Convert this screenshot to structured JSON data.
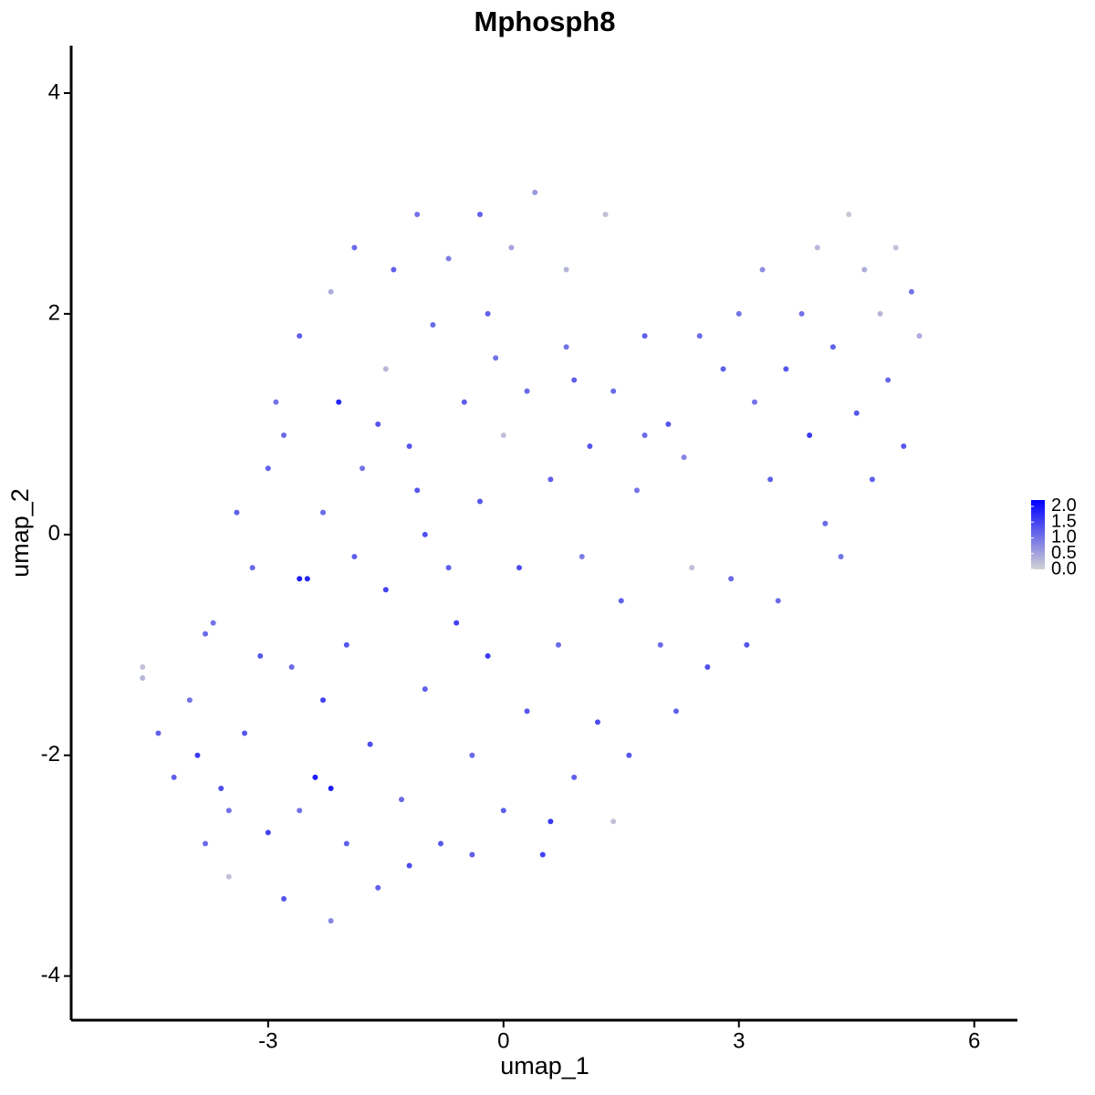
{
  "chart_data": {
    "type": "scatter",
    "title": "Mphosph8",
    "x_label": "umap_1",
    "y_label": "umap_2",
    "xlim": [
      -5.51,
      6.55
    ],
    "ylim": [
      -4.4,
      4.43
    ],
    "xticks": [
      -3,
      0,
      3,
      6
    ],
    "yticks": [
      -4,
      -2,
      0,
      2,
      4
    ],
    "low_color": "#d3d3d3",
    "high_color": "#0000ff",
    "colorbar_lim": [
      0,
      2.2
    ],
    "colorbar_ticks": [
      {
        "value": 0,
        "label": "0.0"
      },
      {
        "value": 0.5,
        "label": "0.5"
      },
      {
        "value": 1,
        "label": "1.0"
      },
      {
        "value": 1.5,
        "label": "1.5"
      },
      {
        "value": 2,
        "label": "2.0"
      }
    ],
    "x": [
      -4.6,
      -4.2,
      -4.0,
      -3.8,
      -3.6,
      -3.5,
      -3.3,
      -3.2,
      -3.0,
      -3.0,
      -2.9,
      -2.8,
      -2.7,
      -2.6,
      -2.5,
      -2.4,
      -2.3,
      -2.2,
      -2.2,
      -2.1,
      -2.0,
      -2.0,
      -1.9,
      -1.8,
      -1.7,
      -1.6,
      -1.5,
      -1.5,
      -1.4,
      -1.3,
      -1.2,
      -1.1,
      -1.0,
      -1.0,
      -0.9,
      -0.8,
      -0.7,
      -0.6,
      -0.5,
      -0.4,
      -0.3,
      -0.3,
      -0.2,
      -0.1,
      0.0,
      0.0,
      0.1,
      0.2,
      0.3,
      0.3,
      0.4,
      0.5,
      0.6,
      0.7,
      0.8,
      0.8,
      0.9,
      1.0,
      1.1,
      1.2,
      1.3,
      1.4,
      1.5,
      1.6,
      1.7,
      1.8,
      2.0,
      2.1,
      2.2,
      2.3,
      2.5,
      2.6,
      2.8,
      2.9,
      3.0,
      3.1,
      3.3,
      3.4,
      3.5,
      3.6,
      3.8,
      3.9,
      4.0,
      4.1,
      4.2,
      4.3,
      4.4,
      4.5,
      4.6,
      4.7,
      4.8,
      4.9,
      5.0,
      5.1,
      5.2,
      5.3,
      -4.4,
      -3.9,
      -3.7,
      -3.4,
      -3.1,
      -2.6,
      -2.3,
      -1.9,
      -1.2,
      -0.7,
      0.6,
      1.4,
      -3.8,
      -2.8,
      -1.6,
      -0.2,
      2.4,
      3.2,
      -4.6,
      -2.2,
      -2.6,
      1.8,
      0.9,
      -1.1,
      -3.5,
      -0.4
    ],
    "y": [
      -1.3,
      -2.2,
      -1.5,
      -2.8,
      -2.3,
      -3.1,
      -1.8,
      -0.3,
      -2.7,
      0.6,
      1.2,
      -3.3,
      -1.2,
      1.8,
      -0.4,
      -2.2,
      0.2,
      -3.5,
      2.2,
      1.2,
      -2.8,
      -1.0,
      2.6,
      0.6,
      -1.9,
      -3.2,
      1.5,
      -0.5,
      2.4,
      -2.4,
      0.8,
      2.9,
      -1.4,
      0.0,
      1.9,
      -2.8,
      2.5,
      -0.8,
      1.2,
      -2.0,
      0.3,
      2.9,
      -1.1,
      1.6,
      -2.5,
      0.9,
      2.6,
      -0.3,
      -1.6,
      1.3,
      3.1,
      -2.9,
      0.5,
      -1.0,
      2.4,
      1.7,
      -2.2,
      -0.2,
      0.8,
      -1.7,
      2.9,
      1.3,
      -0.6,
      -2.0,
      0.4,
      1.8,
      -1.0,
      1.0,
      -1.6,
      0.7,
      1.8,
      -1.2,
      1.5,
      -0.4,
      2.0,
      -1.0,
      2.4,
      0.5,
      -0.6,
      1.5,
      2.0,
      0.9,
      2.6,
      0.1,
      1.7,
      -0.2,
      2.9,
      1.1,
      2.4,
      0.5,
      2.0,
      1.4,
      2.6,
      0.8,
      2.2,
      1.8,
      -1.8,
      -2.0,
      -0.8,
      0.2,
      -1.1,
      -2.5,
      -1.5,
      -0.2,
      -3.0,
      -0.3,
      -2.6,
      -2.6,
      -0.9,
      0.9,
      1.0,
      2.0,
      -0.3,
      1.2,
      -1.2,
      -2.3,
      -0.4,
      0.9,
      1.4,
      0.4,
      -2.5,
      -2.9
    ],
    "values": [
      0.3,
      1.2,
      1.0,
      1.1,
      1.4,
      0.2,
      1.3,
      1.1,
      1.5,
      1.2,
      1.0,
      1.3,
      1.1,
      1.2,
      1.8,
      1.9,
      1.1,
      0.8,
      0.4,
      1.8,
      1.2,
      1.3,
      1.1,
      1.0,
      1.4,
      1.2,
      0.3,
      1.5,
      1.2,
      1.1,
      1.3,
      1.0,
      1.2,
      1.4,
      1.1,
      1.3,
      0.9,
      1.5,
      1.2,
      1.1,
      1.3,
      1.2,
      1.6,
      1.0,
      1.2,
      0.2,
      0.5,
      1.4,
      1.3,
      1.1,
      0.6,
      1.5,
      1.2,
      1.1,
      0.3,
      1.0,
      1.2,
      0.9,
      1.3,
      1.4,
      0.2,
      1.1,
      1.2,
      1.3,
      1.0,
      1.2,
      1.1,
      1.3,
      1.2,
      0.8,
      1.1,
      1.4,
      1.2,
      1.1,
      1.0,
      1.3,
      0.7,
      1.2,
      1.1,
      1.3,
      1.0,
      1.6,
      0.3,
      1.1,
      1.2,
      1.0,
      0.1,
      1.3,
      0.4,
      1.2,
      0.3,
      1.1,
      0.2,
      1.3,
      1.0,
      0.4,
      1.2,
      1.6,
      1.0,
      1.2,
      1.3,
      1.0,
      1.5,
      1.2,
      1.4,
      1.2,
      1.6,
      0.2,
      1.1,
      1.1,
      1.3,
      1.2,
      0.2,
      1.0,
      0.2,
      1.9,
      1.9,
      1.1,
      1.2,
      1.3,
      1.0,
      1.2
    ]
  }
}
